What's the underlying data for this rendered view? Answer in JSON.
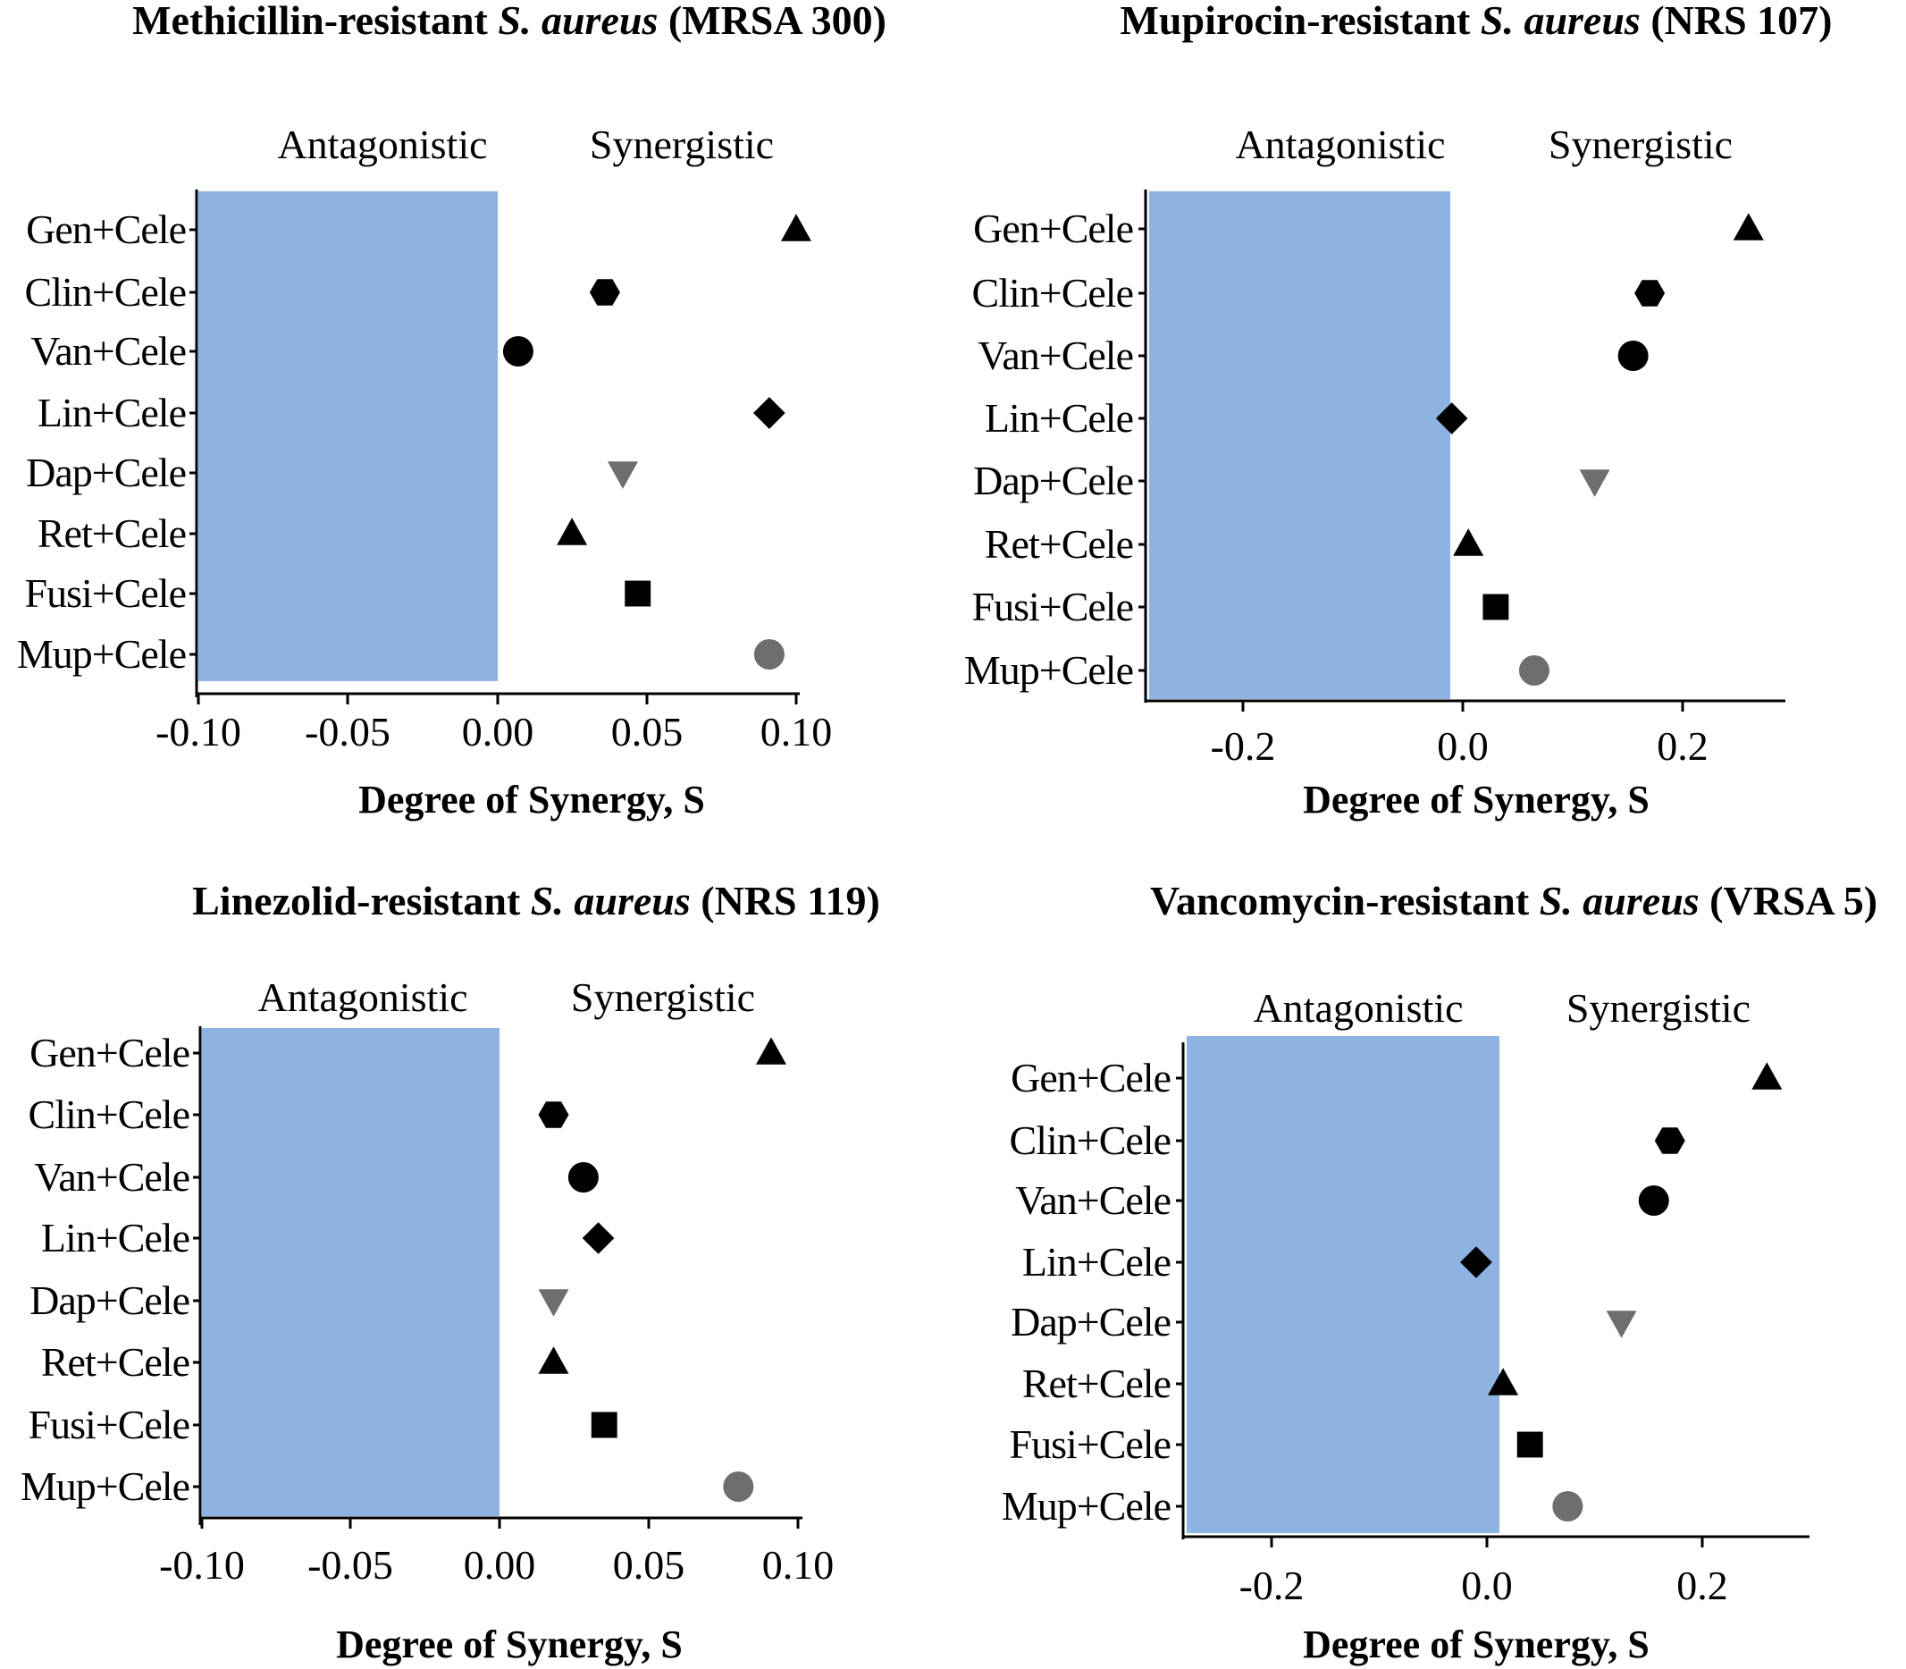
{
  "chart_data": [
    {
      "type": "scatter",
      "title": {
        "prefix": "Methicillin-resistant ",
        "species": "S. aureus",
        "suffix": " (MRSA 300)"
      },
      "xlabel": "Degree of Synergy, S",
      "ylabel": "",
      "region_labels": {
        "left": "Antagonistic",
        "right": "Synergistic"
      },
      "shaded_region": {
        "from": -0.1,
        "to": 0.0,
        "color": "#8db3e2",
        "label": "Antagonistic"
      },
      "xlim": [
        -0.1,
        0.1
      ],
      "xticks": [
        -0.1,
        -0.05,
        0.0,
        0.05,
        0.1
      ],
      "xtick_labels": [
        "-0.10",
        "-0.05",
        "0.00",
        "0.05",
        "0.10"
      ],
      "categories": [
        "Gen+Cele",
        "Clin+Cele",
        "Van+Cele",
        "Lin+Cele",
        "Dap+Cele",
        "Ret+Cele",
        "Fusi+Cele",
        "Mup+Cele"
      ],
      "markers": [
        "triangle-up",
        "hexagon",
        "circle",
        "diamond",
        "triangle-down",
        "triangle-up",
        "square",
        "circle"
      ],
      "marker_colors": [
        "#000000",
        "#000000",
        "#000000",
        "#000000",
        "#6e6e6e",
        "#000000",
        "#000000",
        "#6e6e6e"
      ],
      "values": [
        0.1,
        0.036,
        0.007,
        0.091,
        0.042,
        0.025,
        0.047,
        0.091
      ]
    },
    {
      "type": "scatter",
      "title": {
        "prefix": "Mupirocin-resistant ",
        "species": "S. aureus",
        "suffix": " (NRS 107)"
      },
      "xlabel": "Degree of Synergy, S",
      "ylabel": "",
      "region_labels": {
        "left": "Antagonistic",
        "right": "Synergistic"
      },
      "shaded_region": {
        "from": -0.3,
        "to": -0.01,
        "color": "#8db3e2",
        "label": "Antagonistic"
      },
      "xlim": [
        -0.3,
        0.3
      ],
      "xticks": [
        -0.2,
        0.0,
        0.2
      ],
      "xtick_labels": [
        "-0.2",
        "0.0",
        "0.2"
      ],
      "categories": [
        "Gen+Cele",
        "Clin+Cele",
        "Van+Cele",
        "Lin+Cele",
        "Dap+Cele",
        "Ret+Cele",
        "Fusi+Cele",
        "Mup+Cele"
      ],
      "markers": [
        "triangle-up",
        "hexagon",
        "circle",
        "diamond",
        "triangle-down",
        "triangle-up",
        "square",
        "circle"
      ],
      "marker_colors": [
        "#000000",
        "#000000",
        "#000000",
        "#000000",
        "#6e6e6e",
        "#000000",
        "#000000",
        "#6e6e6e"
      ],
      "values": [
        0.26,
        0.17,
        0.155,
        -0.01,
        0.12,
        0.005,
        0.03,
        0.065
      ]
    },
    {
      "type": "scatter",
      "title": {
        "prefix": "Linezolid-resistant ",
        "species": "S. aureus",
        "suffix": " (NRS 119)"
      },
      "xlabel": "Degree of Synergy, S",
      "ylabel": "",
      "region_labels": {
        "left": "Antagonistic",
        "right": "Synergistic"
      },
      "shaded_region": {
        "from": -0.1,
        "to": 0.0,
        "color": "#8db3e2",
        "label": "Antagonistic"
      },
      "xlim": [
        -0.1,
        0.1
      ],
      "xticks": [
        -0.1,
        -0.05,
        0.0,
        0.05,
        0.1
      ],
      "xtick_labels": [
        "-0.10",
        "-0.05",
        "0.00",
        "0.05",
        "0.10"
      ],
      "categories": [
        "Gen+Cele",
        "Clin+Cele",
        "Van+Cele",
        "Lin+Cele",
        "Dap+Cele",
        "Ret+Cele",
        "Fusi+Cele",
        "Mup+Cele"
      ],
      "markers": [
        "triangle-up",
        "hexagon",
        "circle",
        "diamond",
        "triangle-down",
        "triangle-up",
        "square",
        "circle"
      ],
      "marker_colors": [
        "#000000",
        "#000000",
        "#000000",
        "#000000",
        "#6e6e6e",
        "#000000",
        "#000000",
        "#6e6e6e"
      ],
      "values": [
        0.091,
        0.018,
        0.028,
        0.033,
        0.018,
        0.018,
        0.035,
        0.08
      ]
    },
    {
      "type": "scatter",
      "title": {
        "prefix": "Vancomycin-resistant ",
        "species": "S. aureus",
        "suffix": " (VRSA 5)"
      },
      "xlabel": "Degree of Synergy, S",
      "ylabel": "",
      "region_labels": {
        "left": "Antagonistic",
        "right": "Synergistic"
      },
      "shaded_region": {
        "from": -0.28,
        "to": 0.01,
        "color": "#8db3e2",
        "label": "Antagonistic"
      },
      "xlim": [
        -0.28,
        0.3
      ],
      "xticks": [
        -0.2,
        0.0,
        0.2
      ],
      "xtick_labels": [
        "-0.2",
        "0.0",
        "0.2"
      ],
      "categories": [
        "Gen+Cele",
        "Clin+Cele",
        "Van+Cele",
        "Lin+Cele",
        "Dap+Cele",
        "Ret+Cele",
        "Fusi+Cele",
        "Mup+Cele"
      ],
      "markers": [
        "triangle-up",
        "hexagon",
        "circle",
        "diamond",
        "triangle-down",
        "triangle-up",
        "square",
        "circle"
      ],
      "marker_colors": [
        "#000000",
        "#000000",
        "#000000",
        "#000000",
        "#6e6e6e",
        "#000000",
        "#000000",
        "#6e6e6e"
      ],
      "values": [
        0.26,
        0.17,
        0.155,
        -0.01,
        0.125,
        0.015,
        0.04,
        0.075
      ]
    }
  ]
}
